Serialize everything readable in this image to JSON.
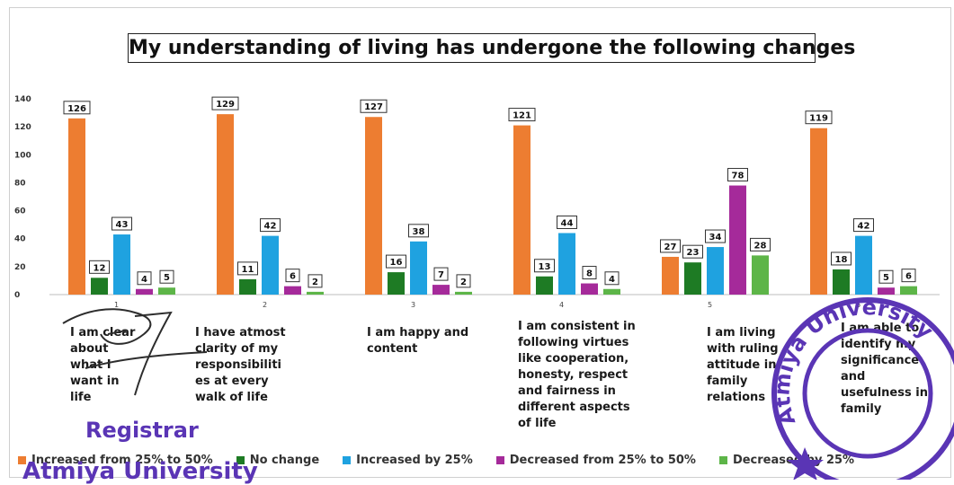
{
  "chart_data": {
    "type": "bar",
    "title": "My understanding of living has undergone the following changes",
    "categories": [
      "1",
      "2",
      "3",
      "4",
      "5",
      "6"
    ],
    "category_descriptions": [
      "I am clear\nabout\nwhat I\nwant in\nlife",
      "I have atmost\nclarity of my\nresponsibiliti\nes at every\nwalk of life",
      "I am happy and\ncontent",
      "I am consistent in\nfollowing virtues\nlike cooperation,\nhonesty, respect\nand fairness in\ndifferent aspects\nof life",
      "I am living\nwith ruling\nattitude in\nfamily\nrelations",
      "I am able to\nidentify my\nsignificance\nand\nusefulness in\nfamily"
    ],
    "series": [
      {
        "name": "Increased from 25% to 50%",
        "color": "#ED7D31",
        "values": [
          126,
          129,
          127,
          121,
          27,
          119
        ]
      },
      {
        "name": "No change",
        "color": "#1E7B24",
        "values": [
          12,
          11,
          16,
          13,
          23,
          18
        ]
      },
      {
        "name": "Increased by 25%",
        "color": "#1FA2E0",
        "values": [
          43,
          42,
          38,
          44,
          34,
          42
        ]
      },
      {
        "name": "Decreased from 25% to 50%",
        "color": "#A52A9A",
        "values": [
          4,
          6,
          7,
          8,
          78,
          5
        ]
      },
      {
        "name": "Decreased by 25%",
        "color": "#5DB548",
        "values": [
          5,
          2,
          2,
          4,
          28,
          6
        ]
      }
    ],
    "ylim": [
      0,
      140
    ],
    "yticks": [
      0,
      20,
      40,
      60,
      80,
      100,
      120,
      140
    ],
    "grid": false,
    "legend_position": "bottom",
    "data_labels": true
  },
  "stamp": {
    "title": "Registrar",
    "organization": "Atmiya University",
    "seal_text": "Atmiya University",
    "color": "#5a35b5"
  }
}
